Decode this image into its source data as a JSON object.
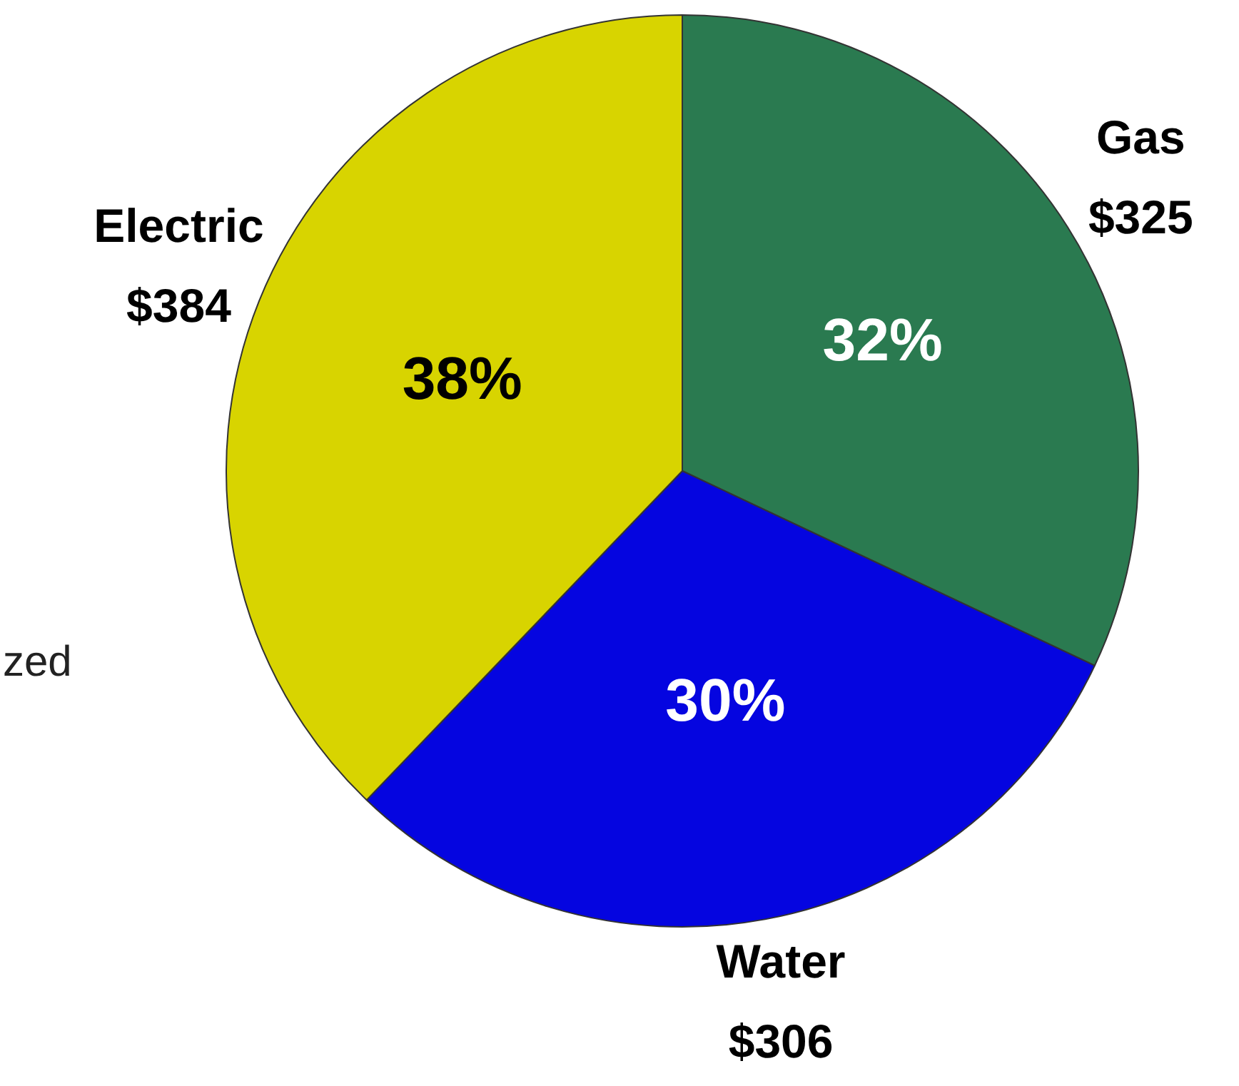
{
  "chart_data": {
    "type": "pie",
    "categories": [
      "Gas",
      "Water",
      "Electric"
    ],
    "values": [
      325,
      306,
      384
    ],
    "colors": [
      "#2a7a50",
      "#0505e0",
      "#d8d400"
    ],
    "value_labels": [
      "$325",
      "$306",
      "$384"
    ],
    "annotations": [
      {
        "text": "32%",
        "x": "Gas"
      },
      {
        "text": "30%",
        "x": "Water"
      },
      {
        "text": "38%",
        "x": "Electric"
      },
      "zed"
    ],
    "legend": false
  }
}
